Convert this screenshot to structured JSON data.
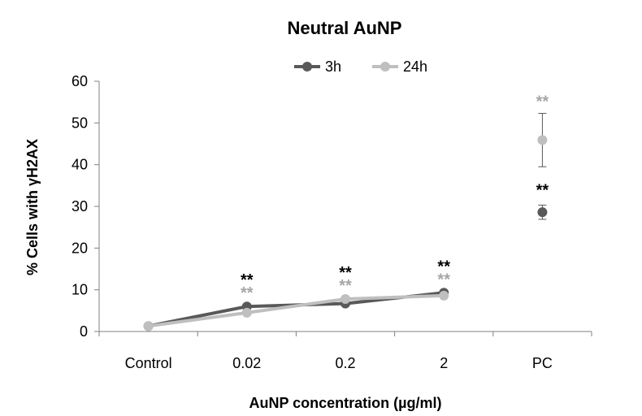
{
  "chart_data": {
    "type": "line",
    "title": "Neutral AuNP",
    "xlabel": "AuNP concentration (µg/ml)",
    "ylabel": "% Cells with γH2AX",
    "categories": [
      "Control",
      "0.02",
      "0.2",
      "2",
      "PC"
    ],
    "ylim": [
      0,
      60
    ],
    "yticks": [
      0,
      10,
      20,
      30,
      40,
      50,
      60
    ],
    "grid": false,
    "legend_position": "top",
    "series": [
      {
        "name": "3h",
        "color": "#595959",
        "values": [
          1.3,
          6.0,
          6.7,
          9.3,
          28.6
        ],
        "error": [
          null,
          null,
          null,
          null,
          1.7
        ],
        "annotations": [
          "",
          "**",
          "**",
          "**",
          "**"
        ]
      },
      {
        "name": "24h",
        "color": "#bfbfbf",
        "values": [
          1.3,
          4.5,
          7.8,
          8.6,
          45.9
        ],
        "error": [
          null,
          null,
          null,
          null,
          6.4
        ],
        "annotations": [
          "",
          "**",
          "**",
          "**",
          "**"
        ]
      }
    ],
    "connect_until_index": 3
  }
}
